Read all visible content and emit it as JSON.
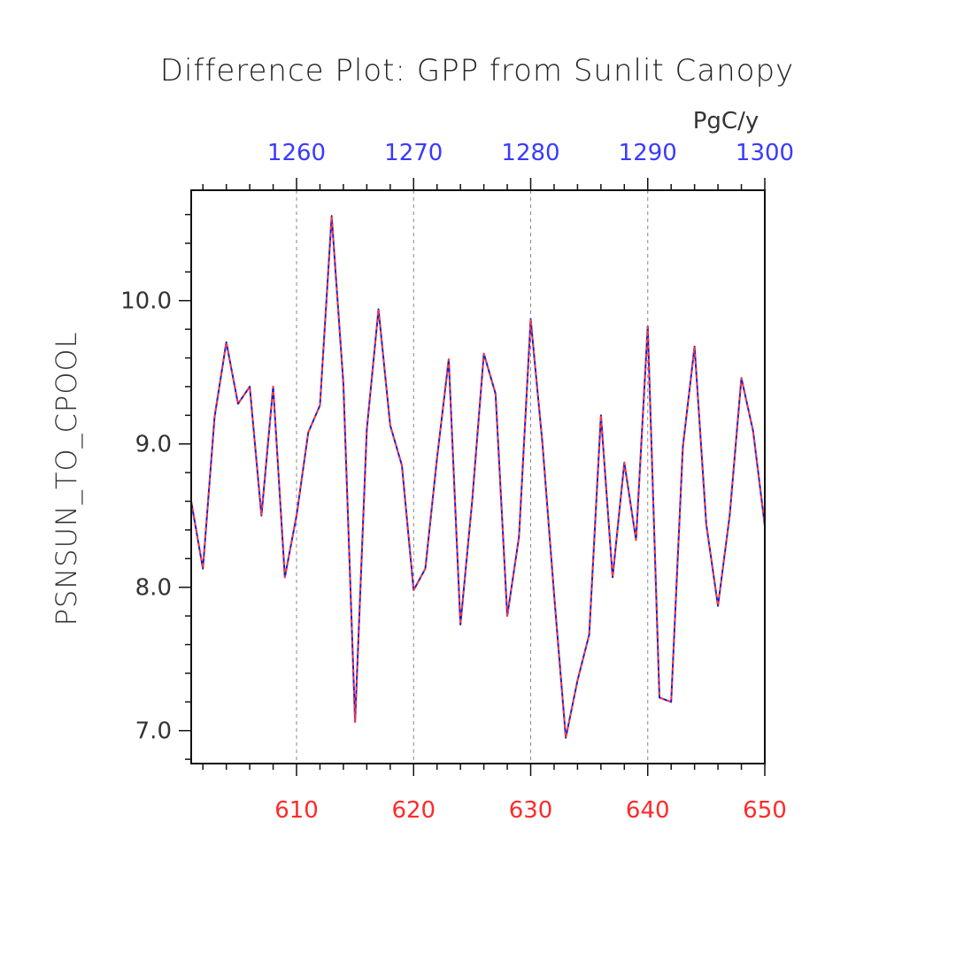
{
  "chart_data": {
    "type": "line",
    "title": "Difference Plot: GPP from Sunlit Canopy",
    "ylabel": "PSNSUN_TO_CPOOL",
    "top_axis_unit": "PgC/y",
    "xlim": [
      601,
      650
    ],
    "ylim": [
      6.77,
      10.77
    ],
    "y_ticks": [
      7.0,
      8.0,
      9.0,
      10.0
    ],
    "y_tick_labels": [
      "7.0",
      "8.0",
      "9.0",
      "10.0"
    ],
    "x_ticks_bottom": [
      610,
      620,
      630,
      640,
      650
    ],
    "x_tick_labels_bottom": [
      "610",
      "620",
      "630",
      "640",
      "650"
    ],
    "x_ticks_top": [
      1260,
      1270,
      1280,
      1290,
      1300
    ],
    "x_tick_labels_top": [
      "1260",
      "1270",
      "1280",
      "1290",
      "1300"
    ],
    "top_axis_offset": 650,
    "grid": "vertical dashed at major ticks",
    "colors": {
      "bottom_axis": "#ff2a2a",
      "top_axis": "#3a3aff",
      "series_1": "#1a1ad6",
      "series_2": "#ff3a3a",
      "axis": "#111111",
      "grid": "#888888"
    },
    "x": [
      601,
      602,
      603,
      604,
      605,
      606,
      607,
      608,
      609,
      610,
      611,
      612,
      613,
      614,
      615,
      616,
      617,
      618,
      619,
      620,
      621,
      622,
      623,
      624,
      625,
      626,
      627,
      628,
      629,
      630,
      631,
      632,
      633,
      634,
      635,
      636,
      637,
      638,
      639,
      640,
      641,
      642,
      643,
      644,
      645,
      646,
      647,
      648,
      649,
      650
    ],
    "series": [
      {
        "style": "solid",
        "color": "#1a1ad6",
        "values": [
          8.6,
          8.13,
          9.19,
          9.71,
          9.28,
          9.4,
          8.5,
          9.4,
          8.07,
          8.5,
          9.08,
          9.27,
          10.59,
          9.42,
          7.06,
          9.1,
          9.94,
          9.13,
          8.85,
          7.98,
          8.13,
          8.9,
          9.59,
          7.74,
          8.6,
          9.63,
          9.35,
          7.8,
          8.35,
          9.87,
          9.01,
          7.95,
          6.95,
          7.35,
          7.67,
          9.2,
          8.07,
          8.87,
          8.33,
          9.82,
          7.23,
          7.2,
          8.98,
          9.68,
          8.44,
          7.87,
          8.5,
          9.46,
          9.09,
          8.43
        ]
      },
      {
        "style": "dashed",
        "color": "#ff3a3a",
        "values": [
          8.6,
          8.13,
          9.19,
          9.71,
          9.28,
          9.4,
          8.5,
          9.4,
          8.07,
          8.5,
          9.08,
          9.27,
          10.59,
          9.42,
          7.06,
          9.1,
          9.94,
          9.13,
          8.85,
          7.98,
          8.13,
          8.9,
          9.59,
          7.74,
          8.6,
          9.63,
          9.35,
          7.8,
          8.35,
          9.87,
          9.01,
          7.95,
          6.95,
          7.35,
          7.67,
          9.2,
          8.07,
          8.87,
          8.33,
          9.82,
          7.23,
          7.2,
          8.98,
          9.68,
          8.44,
          7.87,
          8.5,
          9.46,
          9.09,
          8.43
        ]
      }
    ]
  }
}
